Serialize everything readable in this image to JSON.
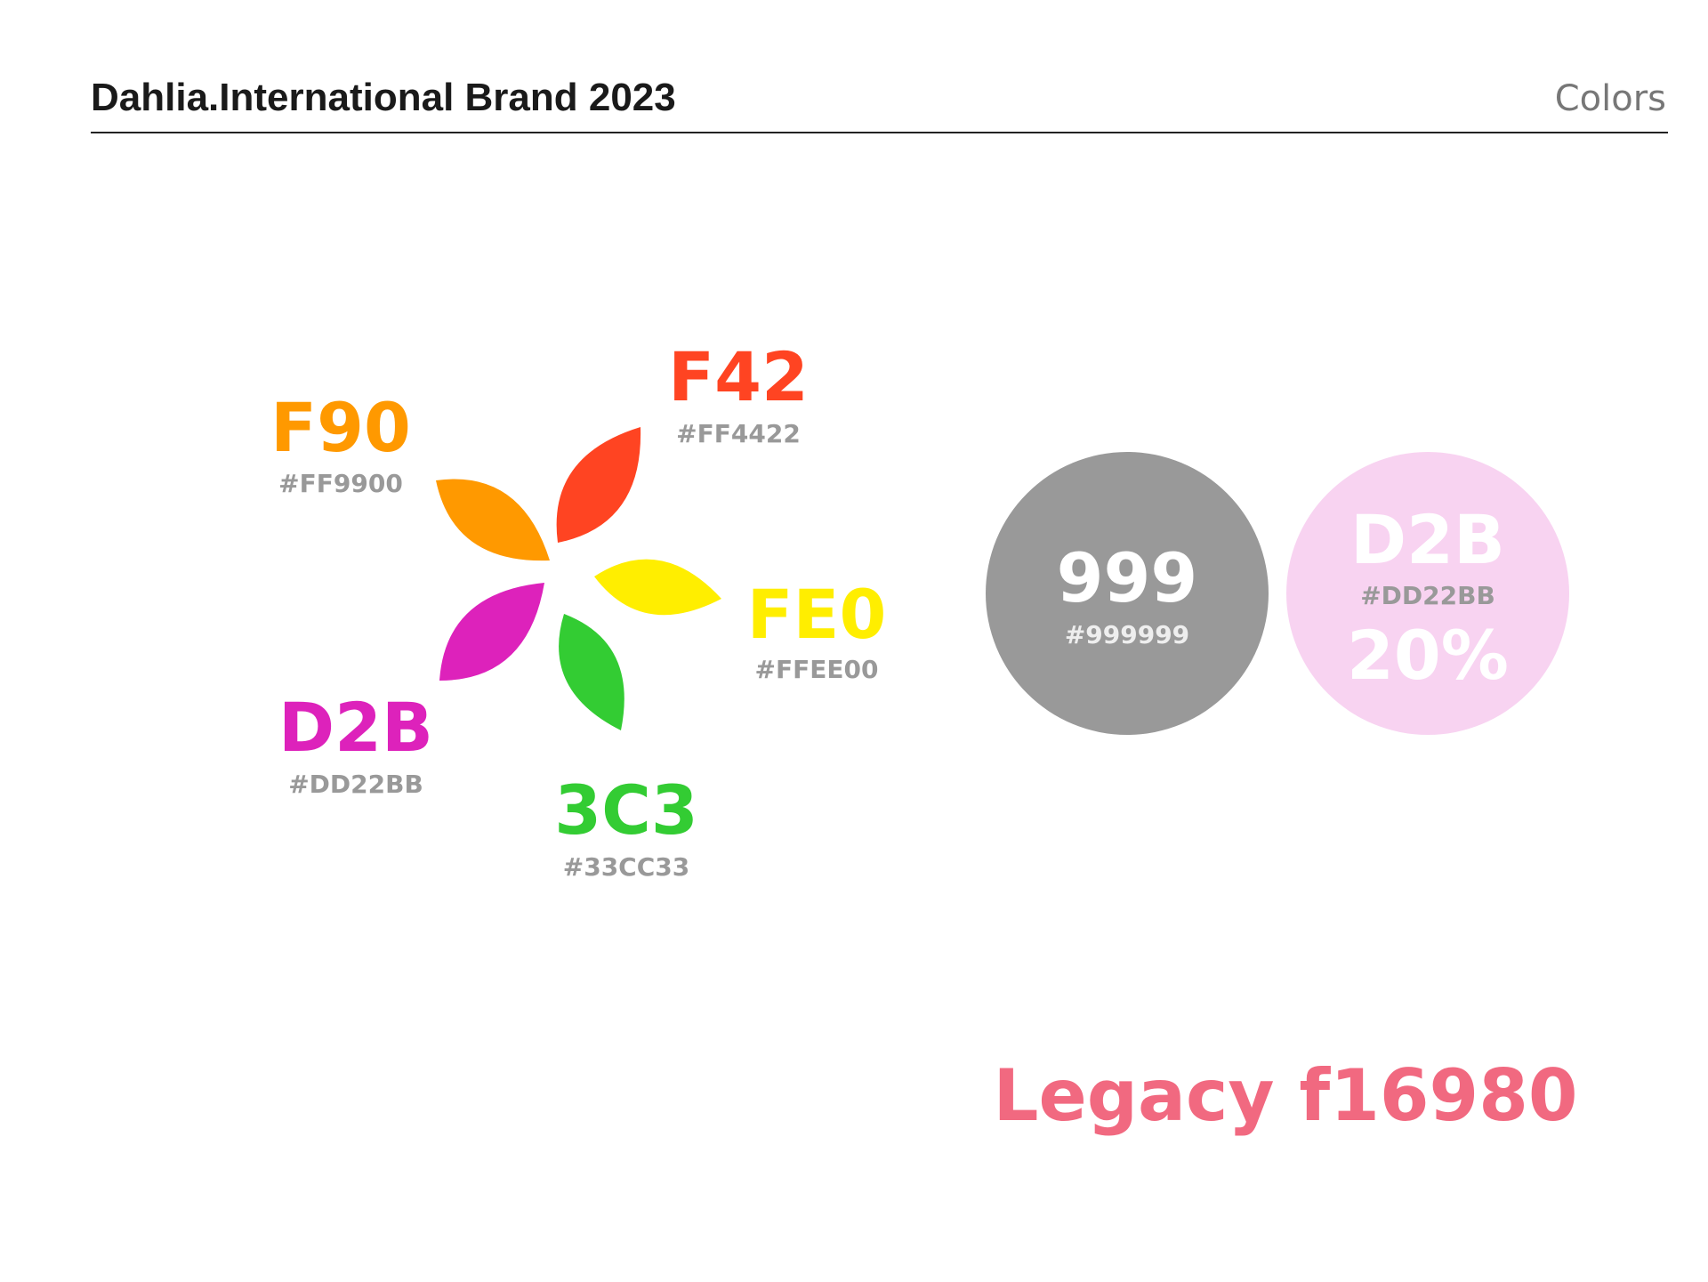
{
  "header": {
    "title": "Dahlia.International Brand 2023",
    "section": "Colors"
  },
  "swatches": [
    {
      "code": "F42",
      "hex": "#FF4422"
    },
    {
      "code": "F90",
      "hex": "#FF9900"
    },
    {
      "code": "FE0",
      "hex": "#FFEE00"
    },
    {
      "code": "D2B",
      "hex": "#DD22BB"
    },
    {
      "code": "3C3",
      "hex": "#33CC33"
    }
  ],
  "neutrals": [
    {
      "code": "999",
      "hex": "#999999"
    },
    {
      "code": "D2B",
      "hex": "#DD22BB",
      "tint": "20%"
    }
  ],
  "legacy": {
    "label": "Legacy f16980",
    "color": "#f16980"
  }
}
